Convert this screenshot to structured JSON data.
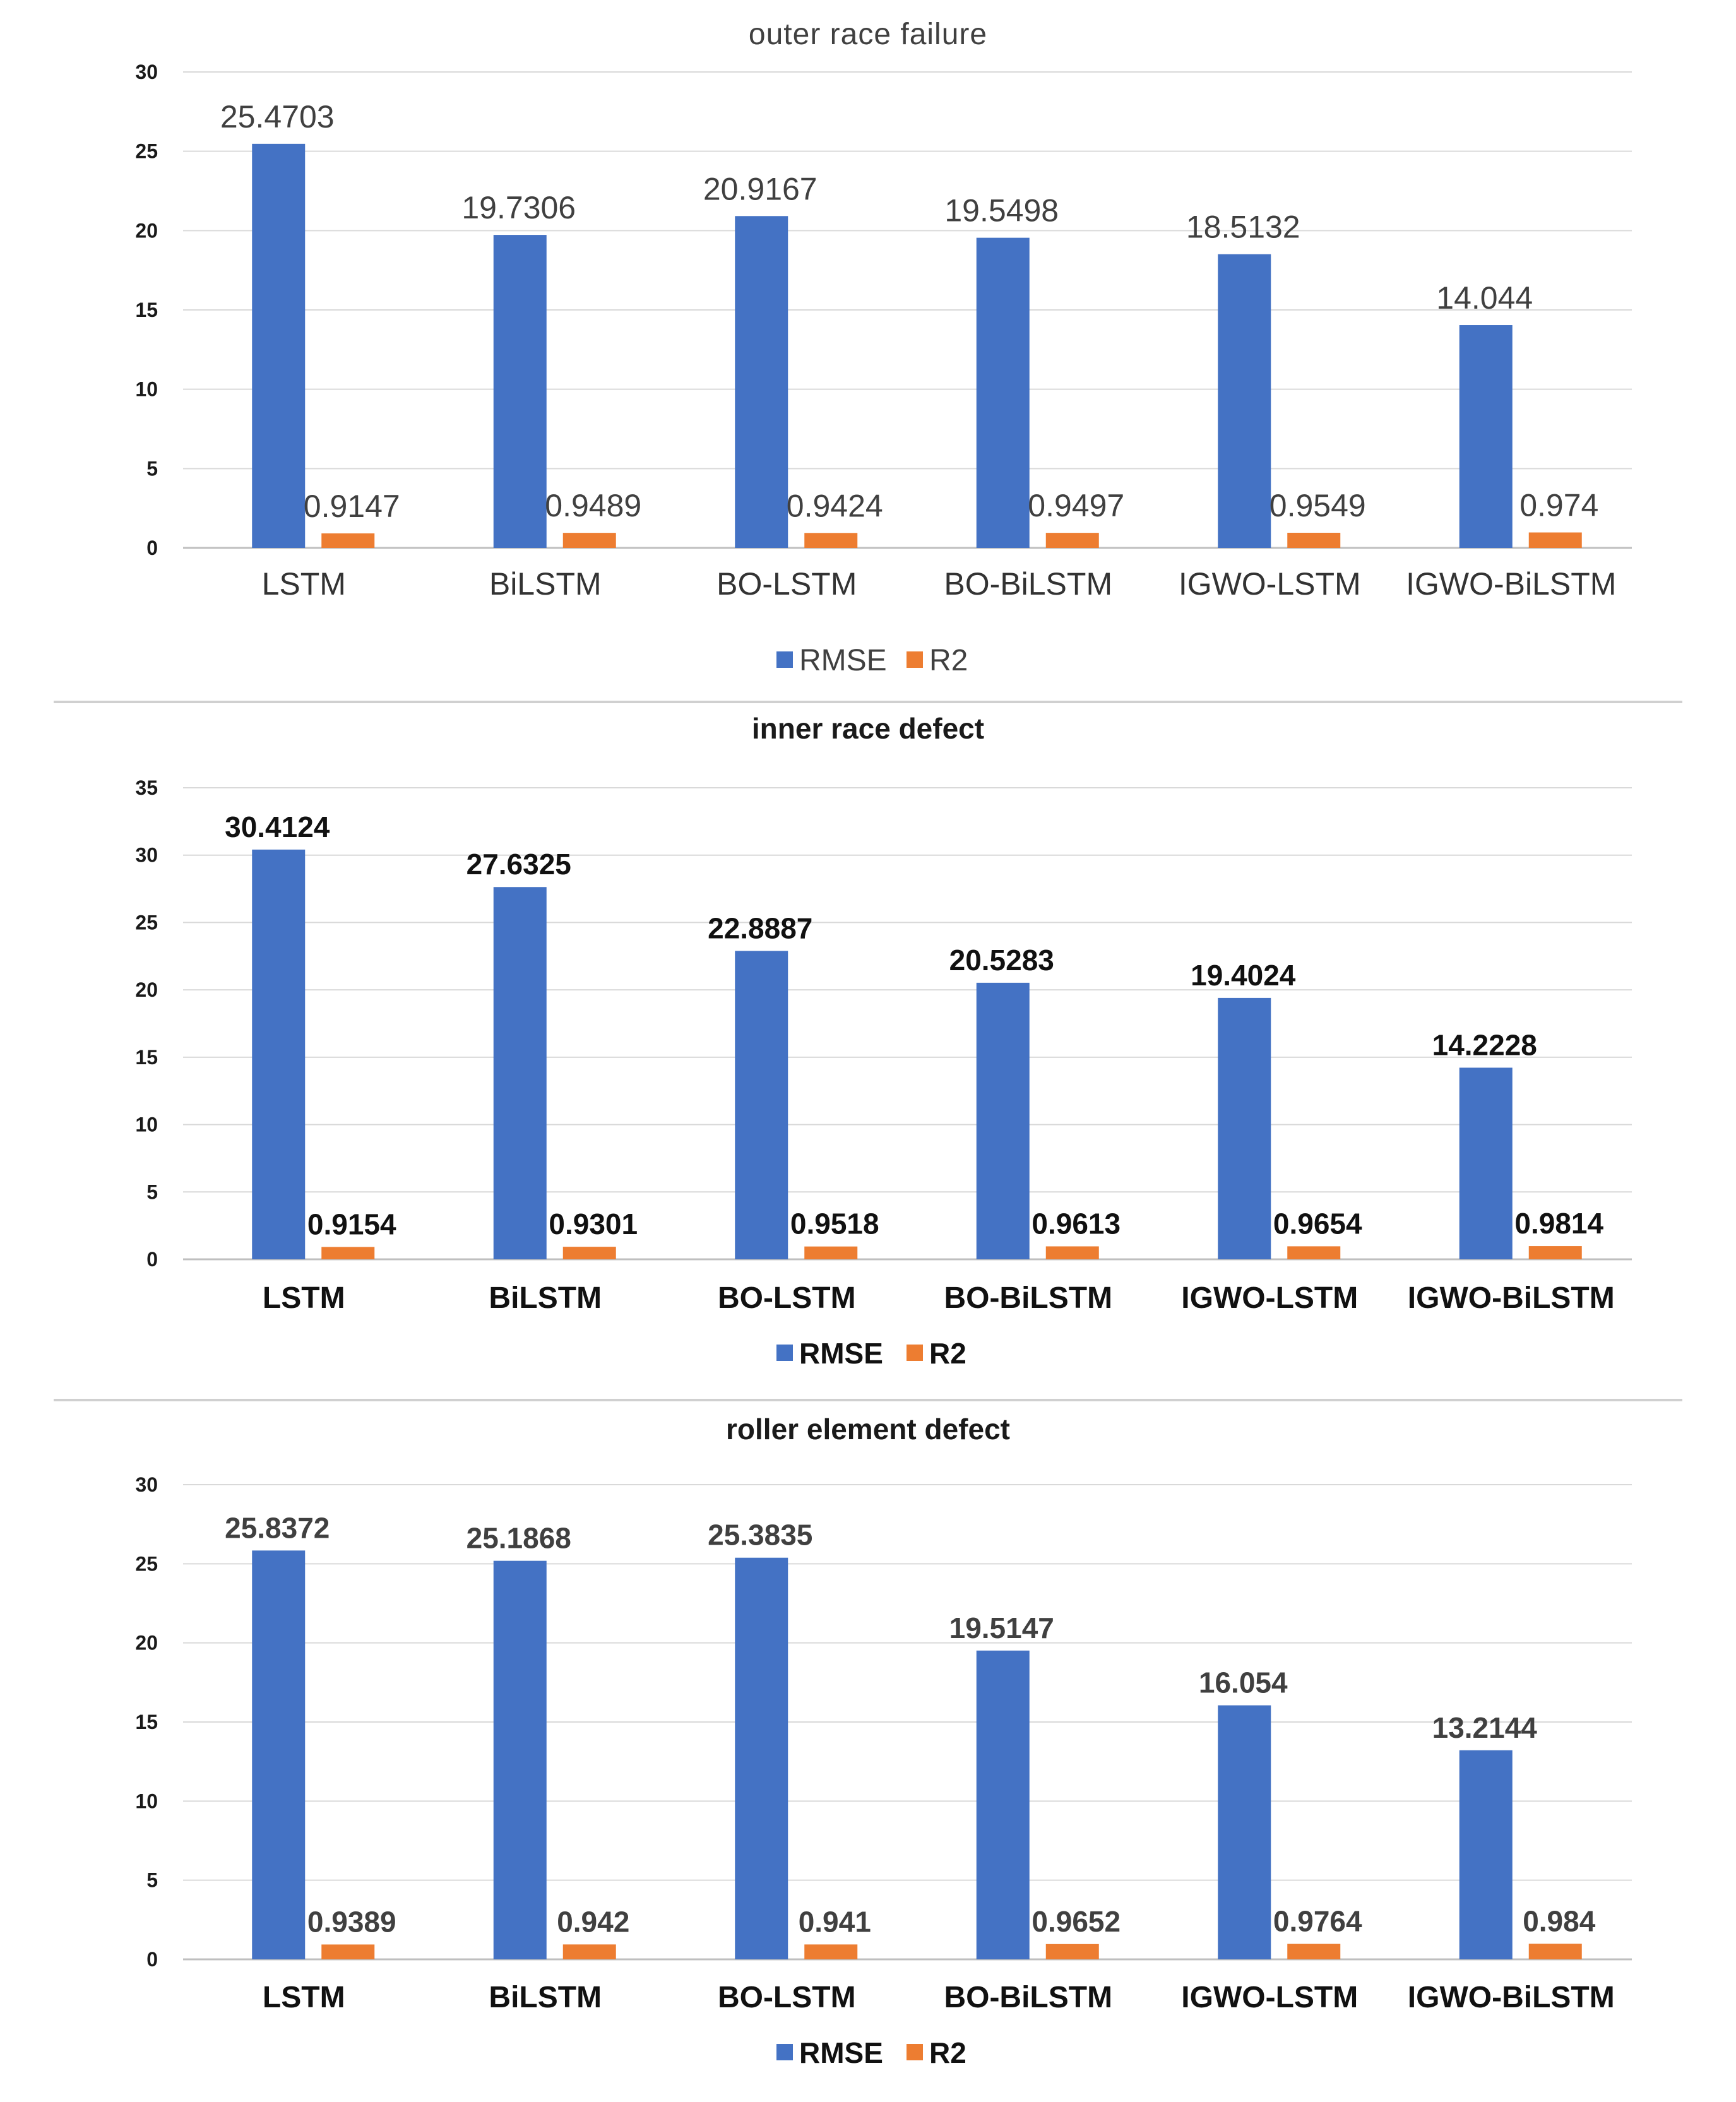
{
  "colors": {
    "rmse": "#4472c4",
    "r2": "#ed7d31"
  },
  "chart_data": [
    {
      "type": "bar",
      "title": "outer race failure",
      "categories": [
        "LSTM",
        "BiLSTM",
        "BO-LSTM",
        "BO-BiLSTM",
        "IGWO-LSTM",
        "IGWO-BiLSTM"
      ],
      "series": [
        {
          "name": "RMSE",
          "values": [
            25.4703,
            19.7306,
            20.9167,
            19.5498,
            18.5132,
            14.044
          ],
          "labels": [
            "25.4703",
            "19.7306",
            "20.9167",
            "19.5498",
            "18.5132",
            "14.044"
          ]
        },
        {
          "name": "R2",
          "values": [
            0.9147,
            0.9489,
            0.9424,
            0.9497,
            0.9549,
            0.974
          ],
          "labels": [
            "0.9147",
            "0.9489",
            "0.9424",
            "0.9497",
            "0.9549",
            "0.974"
          ]
        }
      ],
      "yticks": [
        "0",
        "5",
        "10",
        "15",
        "20",
        "25",
        "30"
      ],
      "ylim": [
        0,
        30
      ],
      "xlabel": "",
      "ylabel": "",
      "grid": true,
      "legend": "bottom"
    },
    {
      "type": "bar",
      "title": "inner race defect",
      "categories": [
        "LSTM",
        "BiLSTM",
        "BO-LSTM",
        "BO-BiLSTM",
        "IGWO-LSTM",
        "IGWO-BiLSTM"
      ],
      "series": [
        {
          "name": "RMSE",
          "values": [
            30.4124,
            27.6325,
            22.8887,
            20.5283,
            19.4024,
            14.2228
          ],
          "labels": [
            "30.4124",
            "27.6325",
            "22.8887",
            "20.5283",
            "19.4024",
            "14.2228"
          ]
        },
        {
          "name": "R2",
          "values": [
            0.9154,
            0.9301,
            0.9518,
            0.9613,
            0.9654,
            0.9814
          ],
          "labels": [
            "0.9154",
            "0.9301",
            "0.9518",
            "0.9613",
            "0.9654",
            "0.9814"
          ]
        }
      ],
      "yticks": [
        "0",
        "5",
        "10",
        "15",
        "20",
        "25",
        "30",
        "35"
      ],
      "ylim": [
        0,
        35
      ],
      "xlabel": "",
      "ylabel": "",
      "grid": true,
      "legend": "bottom"
    },
    {
      "type": "bar",
      "title": "roller element defect",
      "categories": [
        "LSTM",
        "BiLSTM",
        "BO-LSTM",
        "BO-BiLSTM",
        "IGWO-LSTM",
        "IGWO-BiLSTM"
      ],
      "series": [
        {
          "name": "RMSE",
          "values": [
            25.8372,
            25.1868,
            25.3835,
            19.5147,
            16.054,
            13.2144
          ],
          "labels": [
            "25.8372",
            "25.1868",
            "25.3835",
            "19.5147",
            "16.054",
            "13.2144"
          ]
        },
        {
          "name": "R2",
          "values": [
            0.9389,
            0.942,
            0.941,
            0.9652,
            0.9764,
            0.984
          ],
          "labels": [
            "0.9389",
            "0.942",
            "0.941",
            "0.9652",
            "0.9764",
            "0.984"
          ]
        }
      ],
      "yticks": [
        "0",
        "5",
        "10",
        "15",
        "20",
        "25",
        "30"
      ],
      "ylim": [
        0,
        30
      ],
      "xlabel": "",
      "ylabel": "",
      "grid": true,
      "legend": "bottom"
    }
  ]
}
